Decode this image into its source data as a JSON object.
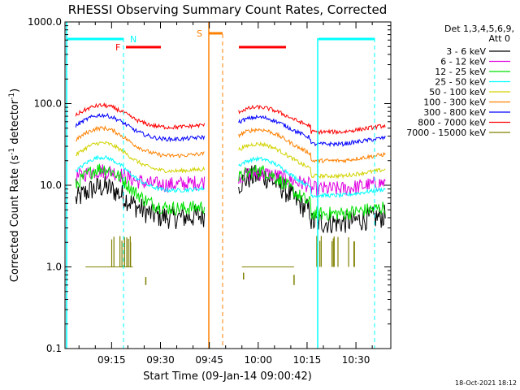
{
  "chart_data": {
    "type": "line",
    "title": "RHESSI Observing Summary Count Rates, Corrected",
    "xlabel": "Start Time (09-Jan-14 09:00:42)",
    "ylabel_main": "Corrected Count Rate (s",
    "ylabel_sup1": "-1",
    "ylabel_mid": " detector",
    "ylabel_sup2": "-1",
    "ylabel_end": ")",
    "y_scale": "log",
    "ylim": [
      0.1,
      1000
    ],
    "x_range_minutes": [
      "09:00:42",
      "10:40"
    ],
    "x_ticks": [
      {
        "t": 15,
        "label": "09:15"
      },
      {
        "t": 30,
        "label": "09:30"
      },
      {
        "t": 45,
        "label": "09:45"
      },
      {
        "t": 60,
        "label": "10:00"
      },
      {
        "t": 75,
        "label": "10:15"
      },
      {
        "t": 90,
        "label": "10:30"
      }
    ],
    "y_ticks": [
      {
        "v": 0.1,
        "label": "0.1"
      },
      {
        "v": 1,
        "label": "1.0"
      },
      {
        "v": 10,
        "label": "10.0"
      },
      {
        "v": 100,
        "label": "100.0"
      },
      {
        "v": 1000,
        "label": "1000.0"
      }
    ],
    "legend": {
      "placement": "right",
      "header1": "Det 1,3,4,5,6,9,",
      "header2": "Att 0",
      "entries": [
        {
          "label": "3 - 6 keV",
          "color": "#000000"
        },
        {
          "label": "6 - 12 keV",
          "color": "#e100e1"
        },
        {
          "label": "12 - 25 keV",
          "color": "#00e100"
        },
        {
          "label": "25 - 50 keV",
          "color": "#00ffff"
        },
        {
          "label": "50 - 100 keV",
          "color": "#d2d200"
        },
        {
          "label": "100 - 300 keV",
          "color": "#ff8000"
        },
        {
          "label": "300 - 800 keV",
          "color": "#0000ff"
        },
        {
          "label": "800 - 7000 keV",
          "color": "#ff0000"
        },
        {
          "label": "7000 - 15000 keV",
          "color": "#808000"
        }
      ]
    },
    "flags": [
      {
        "label": "N",
        "color": "#00ffff"
      },
      {
        "label": "F",
        "color": "#ff0000"
      },
      {
        "label": "S",
        "color": "#ff8000"
      }
    ],
    "footer_date": "18-Oct-2021 18:12",
    "series_approx": [
      {
        "name": "800 - 7000 keV",
        "color": "#ff0000",
        "orbit1_peak": 95,
        "orbit2_peak": 90,
        "baseline": 45
      },
      {
        "name": "300 - 800 keV",
        "color": "#0000ff",
        "orbit1_peak": 72,
        "orbit2_peak": 68,
        "baseline": 32
      },
      {
        "name": "100 - 300 keV",
        "color": "#ff8000",
        "orbit1_peak": 50,
        "orbit2_peak": 48,
        "baseline": 20
      },
      {
        "name": "50 - 100 keV",
        "color": "#d2d200",
        "orbit1_peak": 33,
        "orbit2_peak": 32,
        "baseline": 13
      },
      {
        "name": "25 - 50 keV",
        "color": "#00ffff",
        "orbit1_peak": 22,
        "orbit2_peak": 21,
        "baseline": 7.5
      },
      {
        "name": "12 - 25 keV",
        "color": "#00e100",
        "orbit1_peak": 16,
        "orbit2_peak": 15,
        "baseline": 4.5
      },
      {
        "name": "6 - 12 keV",
        "color": "#e100e1",
        "orbit1_peak": 15,
        "orbit2_peak": 14,
        "baseline": 9
      },
      {
        "name": "3 - 6 keV",
        "color": "#000000",
        "orbit1_peak": 9.5,
        "orbit2_peak": 13,
        "baseline": 3.5
      }
    ]
  }
}
